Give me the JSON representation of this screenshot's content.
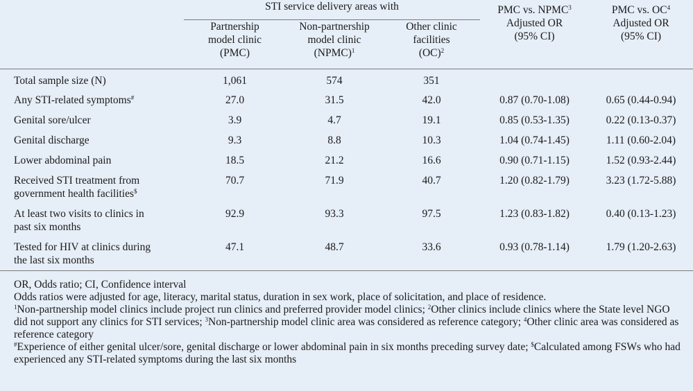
{
  "header": {
    "group_label": "STI service delivery areas with",
    "col1_line1": "Partnership",
    "col1_line2": "model clinic",
    "col1_line3": "(PMC)",
    "col2_line1": "Non-partnership",
    "col2_line2": "model clinic",
    "col2_line3": "(NPMC)",
    "col2_sup": "1",
    "col3_line1": "Other clinic",
    "col3_line2": "facilities",
    "col3_line3": "(OC)",
    "col3_sup": "2",
    "col4_line1": "PMC vs. NPMC",
    "col4_sup": "3",
    "col4_line2": "Adjusted OR",
    "col4_line3": "(95% CI)",
    "col5_line1": "PMC vs. OC",
    "col5_sup": "4",
    "col5_line2": "Adjusted OR",
    "col5_line3": "(95% CI)"
  },
  "rows": [
    {
      "label1": "Total sample size (N)",
      "label2": "",
      "sup": "",
      "pmc": "1,061",
      "npmc": "574",
      "oc": "351",
      "or1": "",
      "or2": ""
    },
    {
      "label1": "Any STI-related symptoms",
      "label2": "",
      "sup": "#",
      "pmc": "27.0",
      "npmc": "31.5",
      "oc": "42.0",
      "or1": "0.87 (0.70-1.08)",
      "or2": "0.65 (0.44-0.94)"
    },
    {
      "label1": "Genital sore/ulcer",
      "label2": "",
      "sup": "",
      "pmc": "3.9",
      "npmc": "4.7",
      "oc": "19.1",
      "or1": "0.85 (0.53-1.35)",
      "or2": "0.22 (0.13-0.37)"
    },
    {
      "label1": "Genital discharge",
      "label2": "",
      "sup": "",
      "pmc": "9.3",
      "npmc": "8.8",
      "oc": "10.3",
      "or1": "1.04 (0.74-1.45)",
      "or2": "1.11 (0.60-2.04)"
    },
    {
      "label1": "Lower abdominal pain",
      "label2": "",
      "sup": "",
      "pmc": "18.5",
      "npmc": "21.2",
      "oc": "16.6",
      "or1": "0.90 (0.71-1.15)",
      "or2": "1.52 (0.93-2.44)"
    },
    {
      "label1": "Received STI treatment from",
      "label2": "government health facilities",
      "sup": "$",
      "pmc": "70.7",
      "npmc": "71.9",
      "oc": "40.7",
      "or1": "1.20 (0.82-1.79)",
      "or2": "3.23 (1.72-5.88)"
    },
    {
      "label1": "At least two visits to clinics in",
      "label2": "past six months",
      "sup": "",
      "pmc": "92.9",
      "npmc": "93.3",
      "oc": "97.5",
      "or1": "1.23 (0.83-1.82)",
      "or2": "0.40 (0.13-1.23)"
    },
    {
      "label1": "Tested for HIV at clinics during",
      "label2": "the last six months",
      "sup": "",
      "pmc": "47.1",
      "npmc": "48.7",
      "oc": "33.6",
      "or1": "0.93 (0.78-1.14)",
      "or2": "1.79 (1.20-2.63)"
    }
  ],
  "notes": {
    "abbrev": "OR, Odds ratio; CI, Confidence interval",
    "adjusted": "Odds ratios were adjusted for age, literacy, marital status, duration in sex work, place of solicitation, and place of residence.",
    "fn1_mark": "1",
    "fn1": "Non-partnership model clinics include project run clinics and preferred provider model clinics; ",
    "fn2_mark": "2",
    "fn2": "Other clinics include clinics where the State level NGO did not support any clinics for STI services; ",
    "fn3_mark": "3",
    "fn3": "Non-partnership model clinic area was considered as reference category; ",
    "fn4_mark": "4",
    "fn4": "Other clinic area was considered as reference category",
    "fnh_mark": "#",
    "fnh": "Experience of either genital ulcer/sore, genital discharge or lower abdominal pain in six months preceding survey date; ",
    "fns_mark": "$",
    "fns": "Calculated among FSWs who had experienced any STI-related symptoms during the last six months"
  }
}
